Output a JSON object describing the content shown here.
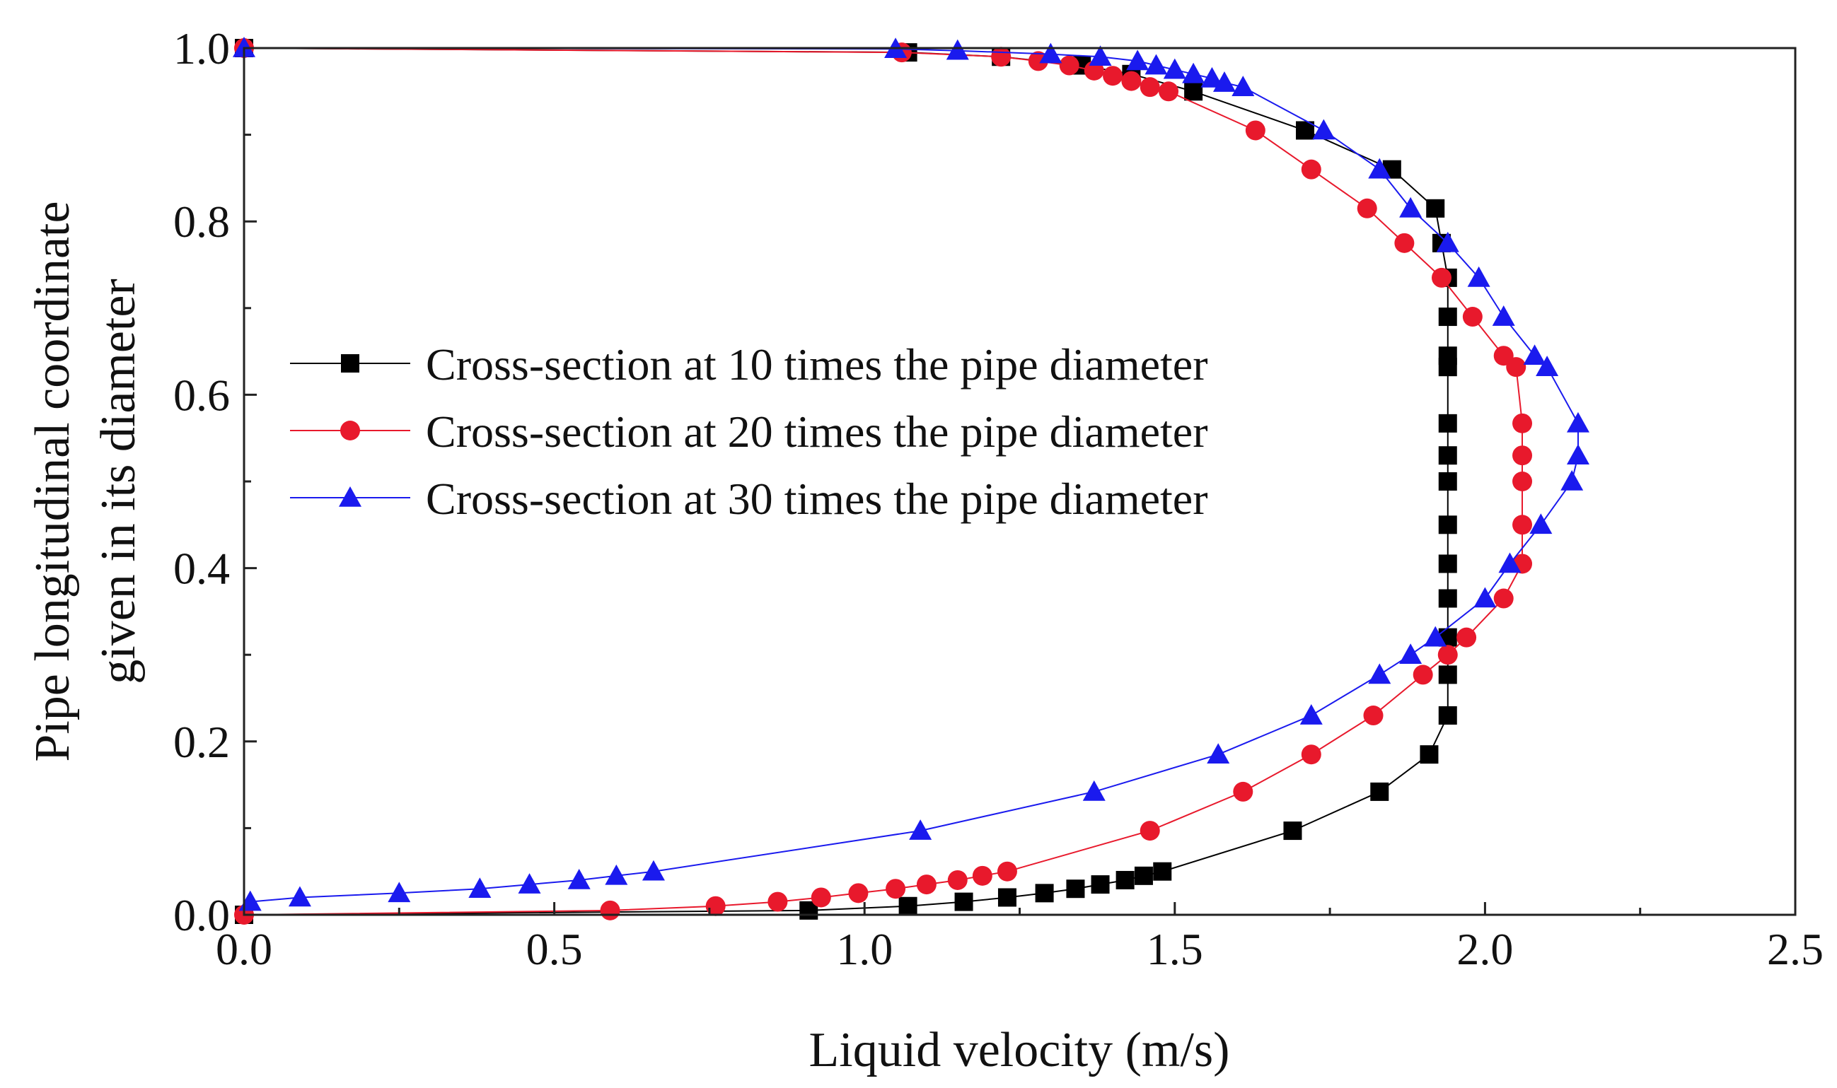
{
  "chart_data": {
    "type": "line",
    "xlabel": "Liquid velocity (m/s)",
    "ylabel_line1": "Pipe longitudinal coordinate",
    "ylabel_line2": "given in its diameter",
    "xlim": [
      0,
      2.5
    ],
    "ylim": [
      0,
      1.0
    ],
    "xticks": [
      0,
      0.5,
      1.0,
      1.5,
      2.0,
      2.5
    ],
    "xtick_labels": [
      "0.0",
      "0.5",
      "1.0",
      "1.5",
      "2.0",
      "2.5"
    ],
    "yticks": [
      0,
      0.2,
      0.4,
      0.6,
      0.8,
      1.0
    ],
    "ytick_labels": [
      "0.0",
      "0.2",
      "0.4",
      "0.6",
      "0.8",
      "1.0"
    ],
    "grid": false,
    "legend_position": "middle-left",
    "series": [
      {
        "name": "Cross-section at 10 times the pipe diameter",
        "color": "#000000",
        "marker": "square",
        "points": [
          [
            0.0,
            0.0
          ],
          [
            0.91,
            0.005
          ],
          [
            1.07,
            0.01
          ],
          [
            1.16,
            0.015
          ],
          [
            1.23,
            0.02
          ],
          [
            1.29,
            0.025
          ],
          [
            1.34,
            0.03
          ],
          [
            1.38,
            0.035
          ],
          [
            1.42,
            0.04
          ],
          [
            1.45,
            0.045
          ],
          [
            1.48,
            0.05
          ],
          [
            1.69,
            0.097
          ],
          [
            1.83,
            0.142
          ],
          [
            1.91,
            0.185
          ],
          [
            1.94,
            0.23
          ],
          [
            1.94,
            0.277
          ],
          [
            1.94,
            0.32
          ],
          [
            1.94,
            0.365
          ],
          [
            1.94,
            0.405
          ],
          [
            1.94,
            0.45
          ],
          [
            1.94,
            0.5
          ],
          [
            1.94,
            0.53
          ],
          [
            1.94,
            0.567
          ],
          [
            1.94,
            0.632
          ],
          [
            1.94,
            0.645
          ],
          [
            1.94,
            0.69
          ],
          [
            1.94,
            0.735
          ],
          [
            1.93,
            0.775
          ],
          [
            1.92,
            0.815
          ],
          [
            1.85,
            0.86
          ],
          [
            1.71,
            0.905
          ],
          [
            1.53,
            0.95
          ],
          [
            1.43,
            0.97
          ],
          [
            1.35,
            0.98
          ],
          [
            1.22,
            0.99
          ],
          [
            1.07,
            0.995
          ],
          [
            0.0,
            1.0
          ]
        ]
      },
      {
        "name": "Cross-section at 20 times the pipe diameter",
        "color": "#e8192c",
        "marker": "circle",
        "points": [
          [
            0.0,
            0.0
          ],
          [
            0.59,
            0.005
          ],
          [
            0.76,
            0.01
          ],
          [
            0.86,
            0.015
          ],
          [
            0.93,
            0.02
          ],
          [
            0.99,
            0.025
          ],
          [
            1.05,
            0.03
          ],
          [
            1.1,
            0.035
          ],
          [
            1.15,
            0.04
          ],
          [
            1.19,
            0.045
          ],
          [
            1.23,
            0.05
          ],
          [
            1.46,
            0.097
          ],
          [
            1.61,
            0.142
          ],
          [
            1.72,
            0.185
          ],
          [
            1.82,
            0.23
          ],
          [
            1.9,
            0.277
          ],
          [
            1.94,
            0.3
          ],
          [
            1.97,
            0.32
          ],
          [
            2.03,
            0.365
          ],
          [
            2.06,
            0.405
          ],
          [
            2.06,
            0.45
          ],
          [
            2.06,
            0.5
          ],
          [
            2.06,
            0.53
          ],
          [
            2.06,
            0.567
          ],
          [
            2.05,
            0.632
          ],
          [
            2.03,
            0.645
          ],
          [
            1.98,
            0.69
          ],
          [
            1.93,
            0.735
          ],
          [
            1.87,
            0.775
          ],
          [
            1.81,
            0.815
          ],
          [
            1.72,
            0.86
          ],
          [
            1.63,
            0.905
          ],
          [
            1.49,
            0.95
          ],
          [
            1.46,
            0.955
          ],
          [
            1.43,
            0.962
          ],
          [
            1.4,
            0.968
          ],
          [
            1.37,
            0.974
          ],
          [
            1.33,
            0.98
          ],
          [
            1.28,
            0.985
          ],
          [
            1.22,
            0.99
          ],
          [
            1.06,
            0.995
          ],
          [
            0.0,
            1.0
          ]
        ]
      },
      {
        "name": "Cross-section at 30 times the pipe diameter",
        "color": "#1a1aee",
        "marker": "triangle",
        "points": [
          [
            0.01,
            0.015
          ],
          [
            0.09,
            0.02
          ],
          [
            0.25,
            0.025
          ],
          [
            0.38,
            0.03
          ],
          [
            0.46,
            0.035
          ],
          [
            0.54,
            0.04
          ],
          [
            0.6,
            0.045
          ],
          [
            0.66,
            0.05
          ],
          [
            1.09,
            0.097
          ],
          [
            1.37,
            0.142
          ],
          [
            1.57,
            0.185
          ],
          [
            1.72,
            0.23
          ],
          [
            1.83,
            0.277
          ],
          [
            1.88,
            0.3
          ],
          [
            1.92,
            0.32
          ],
          [
            2.0,
            0.365
          ],
          [
            2.04,
            0.405
          ],
          [
            2.09,
            0.45
          ],
          [
            2.14,
            0.5
          ],
          [
            2.15,
            0.53
          ],
          [
            2.15,
            0.567
          ],
          [
            2.1,
            0.632
          ],
          [
            2.08,
            0.645
          ],
          [
            2.03,
            0.69
          ],
          [
            1.99,
            0.735
          ],
          [
            1.94,
            0.775
          ],
          [
            1.88,
            0.815
          ],
          [
            1.83,
            0.86
          ],
          [
            1.74,
            0.905
          ],
          [
            1.61,
            0.955
          ],
          [
            1.58,
            0.96
          ],
          [
            1.56,
            0.965
          ],
          [
            1.53,
            0.97
          ],
          [
            1.5,
            0.975
          ],
          [
            1.47,
            0.98
          ],
          [
            1.44,
            0.985
          ],
          [
            1.38,
            0.99
          ],
          [
            1.3,
            0.993
          ],
          [
            1.15,
            0.997
          ],
          [
            1.05,
            0.999
          ],
          [
            0.0,
            1.0
          ]
        ]
      }
    ]
  }
}
